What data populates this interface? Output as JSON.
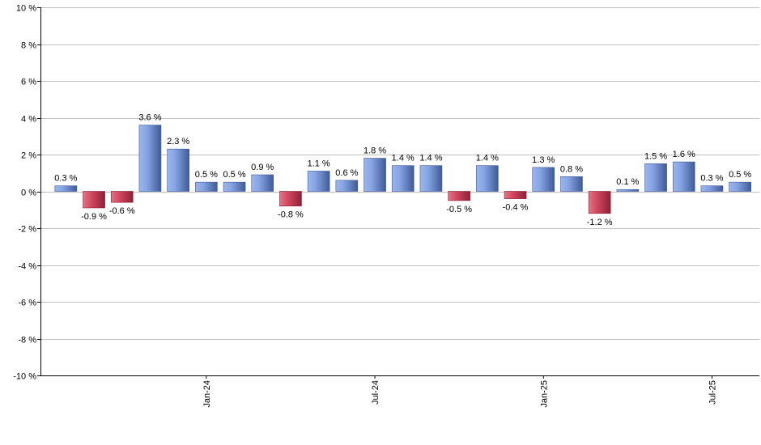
{
  "chart_data": {
    "type": "bar",
    "title": "",
    "xlabel": "",
    "ylabel": "",
    "ylim": [
      -10,
      10
    ],
    "ytick_step": 2,
    "y_unit": " %",
    "grid": true,
    "values": [
      0.3,
      -0.9,
      -0.6,
      3.6,
      2.3,
      0.5,
      0.5,
      0.9,
      -0.8,
      1.1,
      0.6,
      1.8,
      1.4,
      1.4,
      -0.5,
      1.4,
      -0.4,
      1.3,
      0.8,
      -1.2,
      0.1,
      1.5,
      1.6,
      0.3,
      0.5
    ],
    "labels": [
      "0.3 %",
      "-0.9 %",
      "-0.6 %",
      "3.6 %",
      "2.3 %",
      "0.5 %",
      "0.5 %",
      "0.9 %",
      "-0.8 %",
      "1.1 %",
      "0.6 %",
      "1.8 %",
      "1.4 %",
      "1.4 %",
      "-0.5 %",
      "1.4 %",
      "-0.4 %",
      "1.3 %",
      "0.8 %",
      "-1.2 %",
      "0.1 %",
      "1.5 %",
      "1.6 %",
      "0.3 %",
      "0.5 %"
    ],
    "x_ticks": [
      {
        "index": 5,
        "label": "Jan-24"
      },
      {
        "index": 11,
        "label": "Jul-24"
      },
      {
        "index": 17,
        "label": "Jan-25"
      },
      {
        "index": 23,
        "label": "Jul-25"
      }
    ],
    "colors": {
      "positive": "#6d8fd8",
      "positive_light": "#aec4f0",
      "positive_dark": "#3e5896",
      "negative": "#c8384f",
      "negative_light": "#e87a8c",
      "negative_dark": "#8c1f33",
      "grid": "#c0c0c0",
      "axis": "#000000"
    }
  }
}
